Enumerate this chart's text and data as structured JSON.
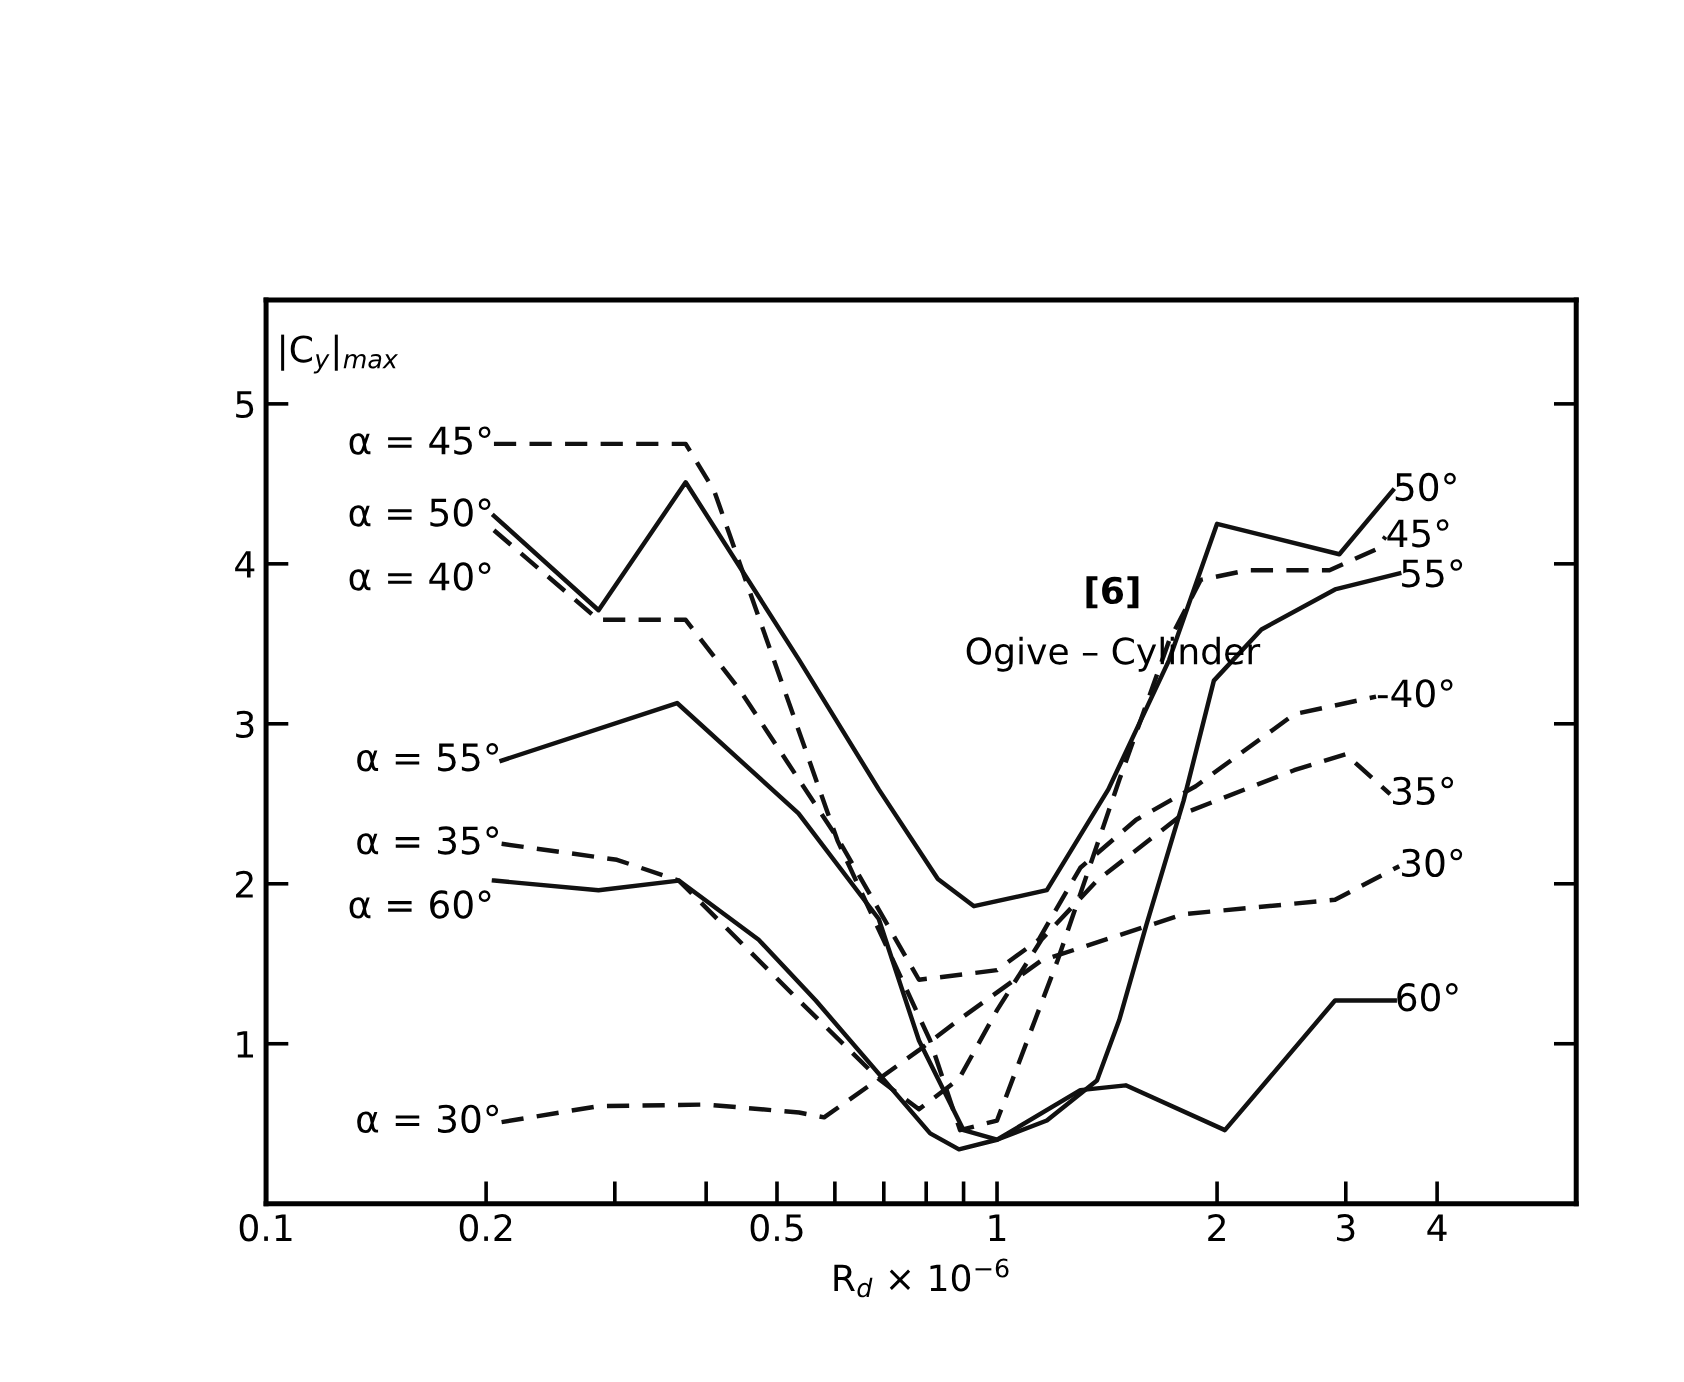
{
  "chart_data": {
    "type": "line",
    "title": "[6]",
    "subtitle": "Ogive – Cylinder",
    "xlabel": "R$_{d}$ × 10$^{−6}$",
    "ylabel": "|C$_{y}$|$_{max}$",
    "log": "x",
    "xlim": [
      0.1,
      6.2
    ],
    "ylim": [
      0,
      5.65
    ],
    "xticks": [
      0.1,
      0.2,
      {
        "value": 0.3,
        "label": null
      },
      {
        "value": 0.4,
        "label": null
      },
      0.5,
      {
        "value": 0.6,
        "label": null
      },
      {
        "value": 0.7,
        "label": null
      },
      {
        "value": 0.8,
        "label": null
      },
      {
        "value": 0.9,
        "label": null
      },
      1,
      2,
      3,
      4
    ],
    "yticks": [
      1,
      2,
      3,
      4,
      5
    ],
    "grid": false,
    "marker": "none",
    "series": [
      {
        "color": "#111111",
        "line_style": "dashed",
        "x": [
          0.205,
          0.375,
          0.41,
          0.605,
          0.81,
          0.89,
          1.0,
          1.21,
          1.47,
          1.72,
          1.9,
          2.2,
          2.85,
          3.3,
          3.4
        ],
        "values": [
          4.75,
          4.75,
          4.46,
          2.27,
          1.02,
          0.46,
          0.52,
          1.52,
          2.65,
          3.52,
          3.9,
          3.96,
          3.96,
          4.09,
          4.17
        ]
      },
      {
        "color": "#111111",
        "line_style": "solid",
        "x": [
          0.205,
          0.285,
          0.375,
          0.536,
          0.689,
          0.83,
          0.93,
          1.17,
          1.42,
          1.72,
          2.0,
          2.94,
          3.48
        ],
        "values": [
          4.3,
          3.71,
          4.51,
          3.4,
          2.59,
          2.03,
          1.86,
          1.96,
          2.59,
          3.4,
          4.25,
          4.06,
          4.46
        ]
      },
      {
        "color": "#111111",
        "line_style": "dashed",
        "x": [
          0.205,
          0.285,
          0.375,
          0.445,
          0.608,
          0.782,
          1.0,
          1.14,
          1.3,
          1.55,
          1.87,
          2.55,
          3.3
        ],
        "values": [
          4.21,
          3.65,
          3.65,
          3.21,
          2.27,
          1.4,
          1.46,
          1.65,
          2.1,
          2.4,
          2.61,
          3.06,
          3.17
        ]
      },
      {
        "color": "#111111",
        "line_style": "solid",
        "x": [
          0.21,
          0.365,
          0.535,
          0.689,
          0.782,
          0.9,
          1.0,
          1.17,
          1.37,
          1.47,
          1.6,
          1.8,
          1.98,
          2.3,
          2.9,
          3.55
        ],
        "values": [
          2.77,
          3.13,
          2.44,
          1.78,
          1.02,
          0.46,
          0.4,
          0.52,
          0.77,
          1.15,
          1.74,
          2.52,
          3.27,
          3.59,
          3.84,
          3.94
        ]
      },
      {
        "color": "#111111",
        "line_style": "dashed",
        "x": [
          0.21,
          0.302,
          0.367,
          0.536,
          0.689,
          0.782,
          0.887,
          1.0,
          1.15,
          1.37,
          1.8,
          2.55,
          3.0,
          3.45
        ],
        "values": [
          2.25,
          2.15,
          2.02,
          1.27,
          0.78,
          0.59,
          0.78,
          1.21,
          1.65,
          2.02,
          2.44,
          2.71,
          2.81,
          2.56
        ]
      },
      {
        "color": "#111111",
        "line_style": "solid",
        "x": [
          0.205,
          0.285,
          0.367,
          0.472,
          0.565,
          0.81,
          0.887,
          1.0,
          1.3,
          1.5,
          2.05,
          2.9,
          3.5
        ],
        "values": [
          2.02,
          1.96,
          2.02,
          1.65,
          1.27,
          0.44,
          0.34,
          0.4,
          0.71,
          0.74,
          0.46,
          1.27,
          1.27
        ]
      },
      {
        "color": "#111111",
        "line_style": "dashed",
        "x": [
          0.21,
          0.285,
          0.4,
          0.536,
          0.58,
          0.689,
          0.782,
          0.887,
          1.15,
          1.8,
          2.9,
          3.55
        ],
        "values": [
          0.51,
          0.61,
          0.62,
          0.57,
          0.54,
          0.78,
          0.96,
          1.15,
          1.52,
          1.81,
          1.9,
          2.11
        ]
      }
    ],
    "annotations": [
      {
        "text": "α = 45°",
        "x": 0.205,
        "y": 4.75
      },
      {
        "text": "α = 50°",
        "x": 0.205,
        "y": 4.3
      },
      {
        "text": "α = 40°",
        "x": 0.205,
        "y": 4.21
      },
      {
        "text": "α = 55°",
        "x": 0.21,
        "y": 2.77
      },
      {
        "text": "α = 35°",
        "x": 0.21,
        "y": 2.25
      },
      {
        "text": "α = 60°",
        "x": 0.205,
        "y": 2.02
      },
      {
        "text": "α = 30°",
        "x": 0.21,
        "y": 0.51
      },
      {
        "text": "50°",
        "x": 3.48,
        "y": 4.46
      },
      {
        "text": "45°",
        "x": 3.4,
        "y": 4.17
      },
      {
        "text": "55°",
        "x": 3.55,
        "y": 3.94
      },
      {
        "text": "-40°",
        "x": 3.3,
        "y": 3.17
      },
      {
        "text": "35°",
        "x": 3.45,
        "y": 2.56
      },
      {
        "text": "30°",
        "x": 3.55,
        "y": 2.11
      },
      {
        "text": "60°",
        "x": 3.5,
        "y": 1.27
      }
    ]
  }
}
